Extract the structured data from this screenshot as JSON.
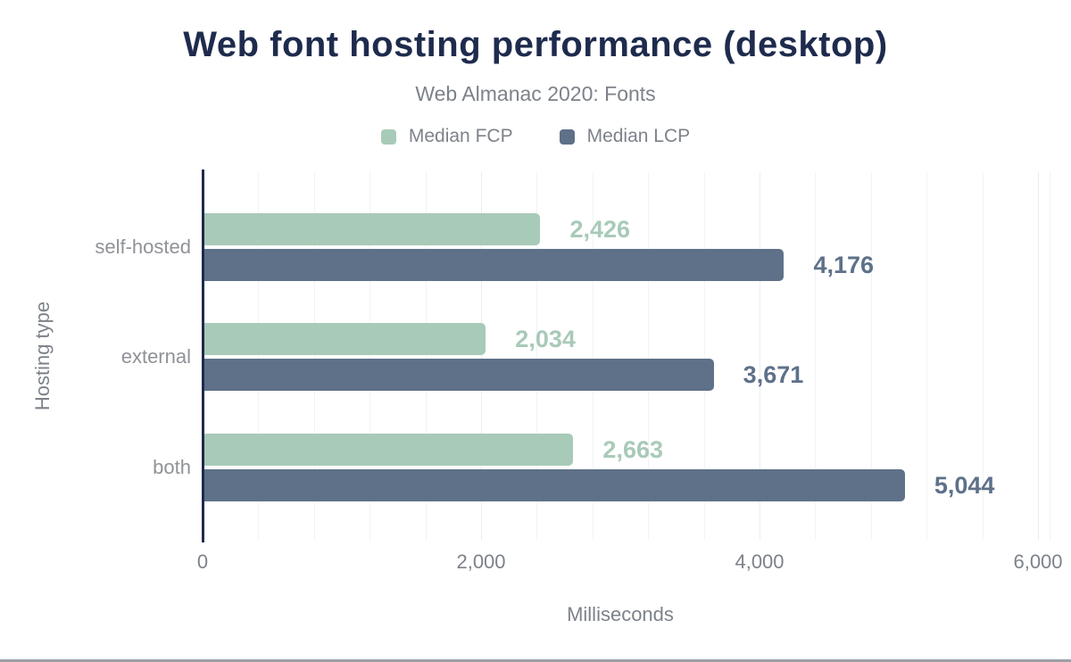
{
  "chart_data": {
    "type": "bar",
    "orientation": "horizontal",
    "title": "Web font hosting performance (desktop)",
    "subtitle": "Web Almanac 2020: Fonts",
    "xlabel": "Milliseconds",
    "ylabel": "Hosting type",
    "categories": [
      "self-hosted",
      "external",
      "both"
    ],
    "series": [
      {
        "name": "Median FCP",
        "color": "#a8cab8",
        "values": [
          2426,
          2034,
          2663
        ],
        "labels": [
          "2,426",
          "2,034",
          "2,663"
        ]
      },
      {
        "name": "Median LCP",
        "color": "#5e7189",
        "values": [
          4176,
          3671,
          5044
        ],
        "labels": [
          "4,176",
          "3,671",
          "5,044"
        ]
      }
    ],
    "xlim": [
      0,
      6000
    ],
    "x_ticks": {
      "values": [
        0,
        2000,
        4000,
        6000
      ],
      "labels": [
        "0",
        "2,000",
        "4,000",
        "6,000"
      ]
    },
    "x_minor_gridline_step": 400,
    "grid": "vertical-minor-on",
    "legend_position": "top-center",
    "data_labels": "outside-end",
    "colors": {
      "title": "#1e2b4d",
      "axis_line": "#1e2b4d",
      "muted_text": "#7d828a",
      "category_label": "#8f9297",
      "gridline_minor": "#f2f3f5",
      "gridline_major": "#eaecef",
      "bottom_rule": "#9aa0a5",
      "background": "#ffffff"
    }
  }
}
